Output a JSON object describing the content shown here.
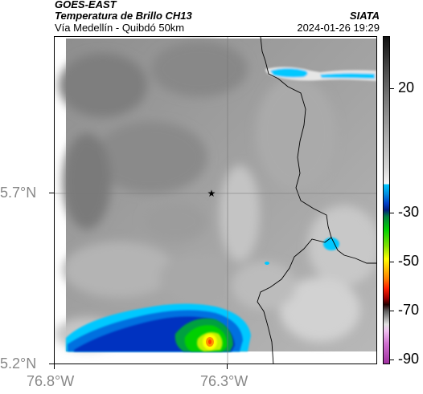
{
  "header": {
    "organization": "GOES-EAST",
    "product": "Temperatura de Brillo CH13",
    "region": "Vía Medellín - Quibdó 50km",
    "brand": "SIATA",
    "timestamp": "2024-01-26 19:29"
  },
  "map": {
    "lat_ticks": [
      "5.7°N",
      "5.2°N"
    ],
    "lon_ticks": [
      "76.8°W",
      "76.3°W"
    ],
    "marker_icon": "star-icon"
  },
  "colorbar": {
    "tick_labels": [
      "20",
      "-30",
      "-50",
      "-70",
      "-90"
    ],
    "colors": {
      "black": "#111111",
      "grey": "#9c9c9c",
      "white": "#f5f5f5",
      "cyan": "#00c8ff",
      "blue": "#0030c0",
      "green": "#00d000",
      "yellow": "#ffff00",
      "orange": "#ff8000",
      "red": "#e00000",
      "magenta": "#c040c0"
    }
  }
}
